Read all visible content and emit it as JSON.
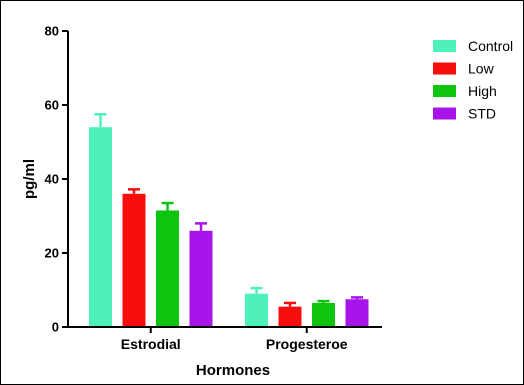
{
  "chart_data": {
    "type": "bar",
    "title": "",
    "xlabel": "Hormones",
    "ylabel": "pg/ml",
    "ylim": [
      0,
      80
    ],
    "yticks": [
      0,
      20,
      40,
      60,
      80
    ],
    "categories": [
      "Estrodial",
      "Progesteroe"
    ],
    "series": [
      {
        "name": "Control",
        "color": "#4ef2b8",
        "values": [
          54,
          9
        ],
        "errors": [
          3.5,
          1.5
        ]
      },
      {
        "name": "Low",
        "color": "#f80d0d",
        "values": [
          36,
          5.5
        ],
        "errors": [
          1.2,
          1.0
        ]
      },
      {
        "name": "High",
        "color": "#0ec40e",
        "values": [
          31.5,
          6.5
        ],
        "errors": [
          2.0,
          0.5
        ]
      },
      {
        "name": "STD",
        "color": "#a713e8",
        "values": [
          26,
          7.5
        ],
        "errors": [
          2.0,
          0.5
        ]
      }
    ],
    "error_bars": true,
    "grid": false,
    "legend_position": "top-right"
  }
}
